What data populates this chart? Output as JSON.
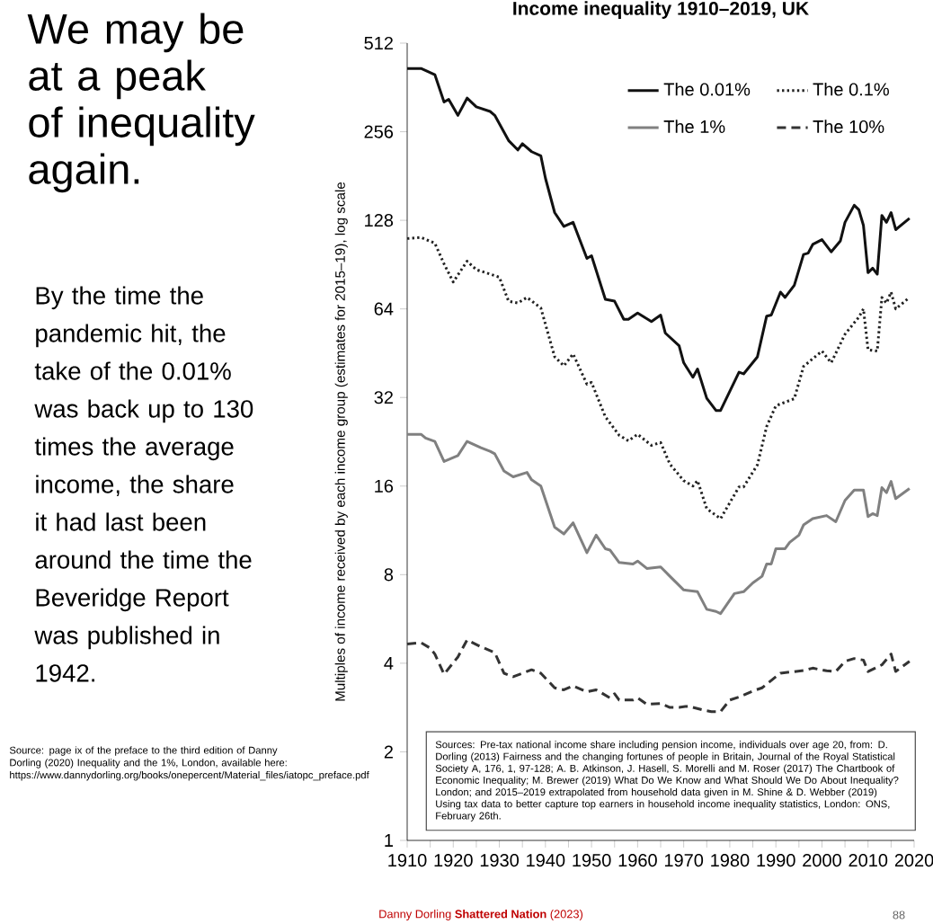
{
  "chart_data": {
    "type": "line",
    "title": "Income inequality 1910–2019, UK",
    "ylabel": "Multiples of income received by each income group (estimates for 2015–19), log scale",
    "log": "y",
    "legend": "top right",
    "xlim": [
      1910,
      2020
    ],
    "xticks": [
      1910,
      {
        "value": 1915,
        "label": null
      },
      1920,
      {
        "value": 1925,
        "label": null
      },
      1930,
      {
        "value": 1935,
        "label": null
      },
      1940,
      {
        "value": 1945,
        "label": null
      },
      1950,
      {
        "value": 1955,
        "label": null
      },
      1960,
      {
        "value": 1965,
        "label": null
      },
      1970,
      {
        "value": 1975,
        "label": null
      },
      1980,
      {
        "value": 1985,
        "label": null
      },
      1990,
      {
        "value": 1995,
        "label": null
      },
      2000,
      {
        "value": 2005,
        "label": null
      },
      2010,
      {
        "value": 2015,
        "label": null
      },
      2020
    ],
    "ylim": [
      1,
      512
    ],
    "yticks": [
      1,
      2,
      4,
      8,
      16,
      32,
      64,
      128,
      256,
      512
    ],
    "series": [
      {
        "name": "The 0.01%",
        "color": "#111111",
        "line_style": "solid",
        "x": [
          1910,
          1913,
          1916,
          1918,
          1919,
          1921,
          1923,
          1925,
          1928,
          1929,
          1932,
          1934,
          1935,
          1937,
          1939,
          1940,
          1942,
          1944,
          1946,
          1949,
          1950,
          1953,
          1955,
          1957,
          1958,
          1960,
          1963,
          1965,
          1966,
          1969,
          1970,
          1972,
          1973,
          1975,
          1977,
          1978,
          1982,
          1983,
          1986,
          1988,
          1989,
          1991,
          1992,
          1994,
          1996,
          1997,
          1998,
          2000,
          2002,
          2004,
          2005,
          2007,
          2008,
          2009,
          2010,
          2011,
          2012,
          2013,
          2014,
          2015,
          2016,
          2019
        ],
        "values": [
          420,
          420,
          400,
          323,
          330,
          291,
          333,
          311,
          300,
          291,
          239,
          222,
          233,
          219,
          212,
          178,
          136,
          122,
          126,
          95,
          97,
          69,
          68,
          59,
          59,
          62,
          58,
          61,
          53,
          48,
          42,
          37.5,
          40,
          31.8,
          28.9,
          28.9,
          39,
          38.5,
          44,
          60.5,
          61,
          73,
          70,
          77,
          98,
          99,
          106,
          110,
          100,
          109,
          126,
          144,
          139,
          123,
          85,
          88,
          84,
          133,
          126,
          136,
          119,
          130
        ]
      },
      {
        "name": "The 0.1%",
        "color": "#222222",
        "line_style": "dotted",
        "x": [
          1910,
          1913,
          1916,
          1918,
          1920,
          1923,
          1925,
          1928,
          1930,
          1932,
          1934,
          1936,
          1939,
          1942,
          1944,
          1946,
          1949,
          1950,
          1953,
          1956,
          1958,
          1960,
          1963,
          1965,
          1967,
          1970,
          1972,
          1973,
          1975,
          1978,
          1982,
          1983,
          1986,
          1988,
          1990,
          1994,
          1996,
          2000,
          2002,
          2005,
          2008,
          2009,
          2010,
          2012,
          2013,
          2014,
          2015,
          2016,
          2019
        ],
        "values": [
          111,
          112,
          107,
          91,
          79,
          93,
          87,
          84,
          82,
          68,
          67,
          70,
          64.5,
          44,
          41,
          45,
          35.5,
          36,
          27.5,
          23.8,
          22.8,
          24,
          22,
          22.5,
          19,
          16.7,
          16,
          16.7,
          13.4,
          12.4,
          15.9,
          15.9,
          18.9,
          25.5,
          30,
          31.7,
          40.8,
          46,
          42,
          52.5,
          60,
          64,
          46.5,
          46,
          70,
          67,
          73,
          64,
          70
        ]
      },
      {
        "name": "The 1%",
        "color": "#808080",
        "line_style": "solid",
        "x": [
          1910,
          1913,
          1914,
          1916,
          1918,
          1921,
          1923,
          1926,
          1928,
          1929,
          1931,
          1933,
          1936,
          1937,
          1939,
          1942,
          1944,
          1946,
          1949,
          1951,
          1953,
          1954,
          1956,
          1959,
          1960,
          1962,
          1965,
          1967,
          1970,
          1973,
          1975,
          1977,
          1978,
          1981,
          1983,
          1985,
          1987,
          1988,
          1989,
          1990,
          1992,
          1993,
          1995,
          1996,
          1998,
          2001,
          2003,
          2005,
          2007,
          2009,
          2010,
          2011,
          2012,
          2013,
          2014,
          2015,
          2016,
          2019
        ],
        "values": [
          24,
          24,
          23.3,
          22.7,
          19.4,
          20.3,
          22.7,
          21.6,
          21,
          20.6,
          18,
          17.2,
          17.8,
          16.8,
          16,
          11.6,
          11,
          12,
          9.5,
          10.9,
          9.8,
          9.7,
          8.8,
          8.7,
          8.9,
          8.4,
          8.5,
          7.9,
          7.1,
          7,
          6.1,
          6,
          5.9,
          6.9,
          7,
          7.5,
          7.9,
          8.7,
          8.7,
          9.8,
          9.8,
          10.3,
          10.9,
          11.8,
          12.4,
          12.7,
          12.1,
          14.3,
          15.5,
          15.5,
          12.6,
          12.9,
          12.7,
          15.8,
          15.2,
          16.6,
          14.5,
          15.7
        ]
      },
      {
        "name": "The 10%",
        "color": "#333333",
        "line_style": "dashed",
        "x": [
          1910,
          1913,
          1915,
          1916,
          1918,
          1921,
          1923,
          1926,
          1929,
          1931,
          1933,
          1937,
          1939,
          1942,
          1944,
          1946,
          1949,
          1951,
          1954,
          1955,
          1956,
          1959,
          1960,
          1962,
          1965,
          1967,
          1969,
          1971,
          1974,
          1976,
          1978,
          1980,
          1982,
          1985,
          1987,
          1990,
          1991,
          1996,
          1998,
          2001,
          2003,
          2005,
          2007,
          2009,
          2010,
          2013,
          2015,
          2016,
          2019
        ],
        "values": [
          4.65,
          4.7,
          4.5,
          4.3,
          3.67,
          4.2,
          4.8,
          4.55,
          4.35,
          3.7,
          3.6,
          3.8,
          3.7,
          3.3,
          3.25,
          3.35,
          3.2,
          3.25,
          3.05,
          3.15,
          3.0,
          3.0,
          3.05,
          2.9,
          2.92,
          2.83,
          2.83,
          2.86,
          2.78,
          2.74,
          2.74,
          3.0,
          3.07,
          3.22,
          3.3,
          3.6,
          3.7,
          3.78,
          3.85,
          3.77,
          3.75,
          4.06,
          4.15,
          4.1,
          3.75,
          3.95,
          4.3,
          3.75,
          4.06
        ]
      }
    ],
    "annotations": [
      "We may be at a peak of inequality again.",
      "By the time the pandemic hit, the take of the 0.01% was back up to 130 times the average income, the share it had last been around the time the Beveridge Report was published in 1942.",
      "Source: page ix of the preface to the third edition of Danny Dorling (2020) Inequality and the 1%, London, available here: https://www.dannydorling.org/books/onepercent/Material_files/iatopc_preface.pdf",
      "Sources: Pre-tax national income share including pension income, individuals over age 20, from: D. Dorling (2013) Fairness and the changing fortunes of people in Britain, Journal of the Royal Statistical Society A, 176, 1, 97-128; A. B. Atkinson, J. Hasell, S. Morelli and M. Roser (2017) The Chartbook of Economic Inequality; M. Brewer (2019) What Do We Know and What Should We Do About Inequality? London; and 2015–2019 extrapolated from household data given in M. Shine & D. Webber (2019) Using tax data to better capture top earners in household income inequality statistics, London: ONS, February 26th.",
      "Danny Dorling **Shattered Nation** (2023)",
      "88"
    ]
  }
}
